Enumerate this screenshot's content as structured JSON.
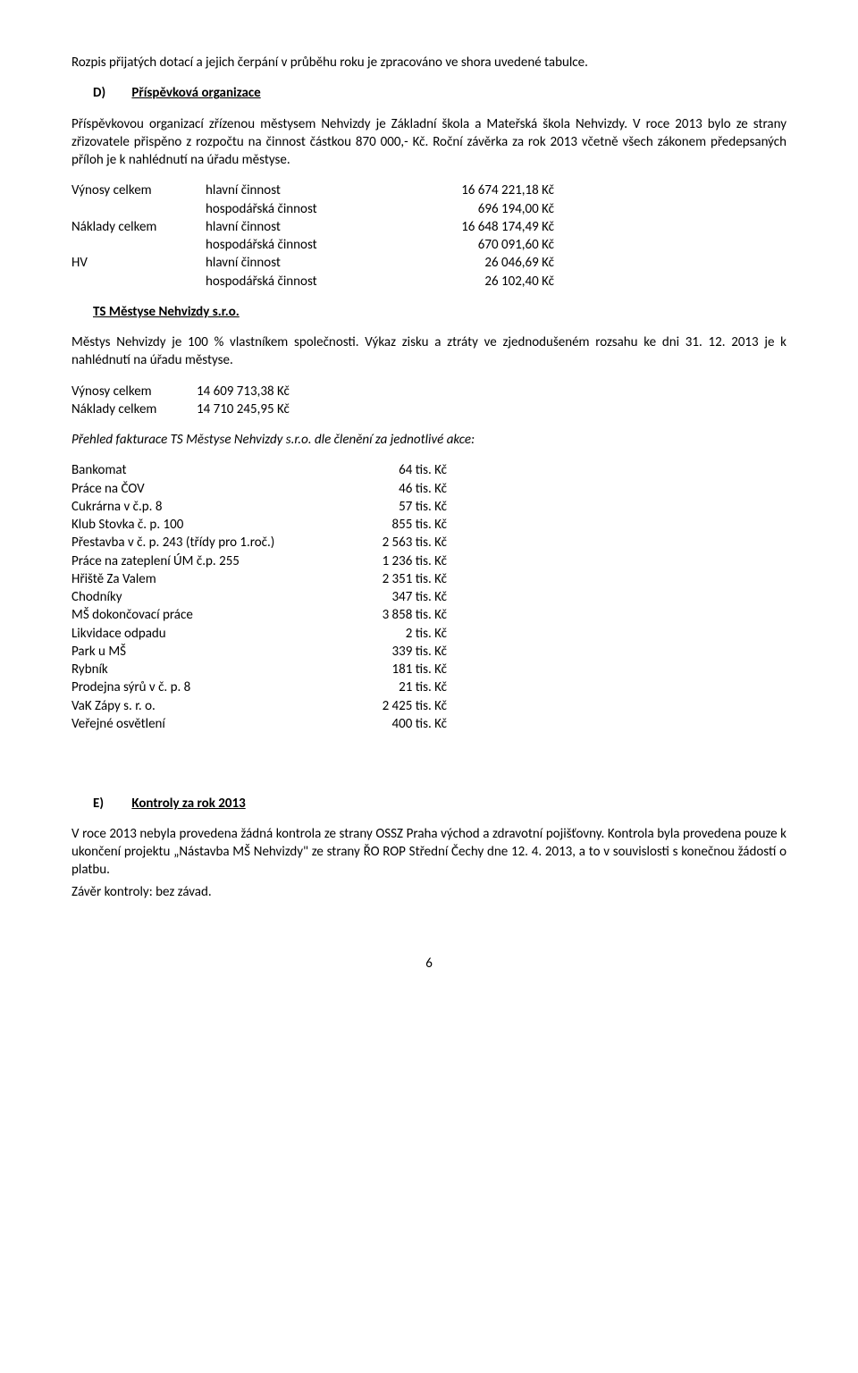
{
  "para_intro": "Rozpis přijatých dotací a jejich čerpání v  průběhu roku je zpracováno ve shora uvedené tabulce.",
  "section_d": {
    "letter": "D)",
    "title": "Příspěvková organizace",
    "para1": "Příspěvkovou organizací zřízenou městysem Nehvizdy je Základní škola a Mateřská škola Nehvizdy. V roce 2013 bylo ze strany zřizovatele přispěno z rozpočtu na činnost částkou 870 000,- Kč. Roční závěrka za rok 2013 včetně všech zákonem předepsaných příloh je k nahlédnutí na úřadu městyse.",
    "rows": [
      {
        "a": "Výnosy celkem",
        "b": "hlavní činnost",
        "c": "16 674 221,18 Kč"
      },
      {
        "a": "",
        "b": "hospodářská činnost",
        "c": "696 194,00 Kč"
      },
      {
        "a": "Náklady celkem",
        "b": "hlavní činnost",
        "c": "16 648 174,49 Kč"
      },
      {
        "a": "",
        "b": "hospodářská činnost",
        "c": "670 091,60 Kč"
      },
      {
        "a": "HV",
        "b": "hlavní činnost",
        "c": "26 046,69 Kč"
      },
      {
        "a": "",
        "b": "hospodářská činnost",
        "c": "26 102,40 Kč"
      }
    ]
  },
  "ts": {
    "heading": "TS Městyse Nehvizdy s.r.o.",
    "para": "Městys Nehvizdy je 100 % vlastníkem společnosti. Výkaz zisku a ztráty ve zjednodušeném rozsahu ke dni 31. 12. 2013 je k nahlédnutí na úřadu městyse.",
    "rows": [
      {
        "a": "Výnosy celkem",
        "c": "14 609 713,38 Kč"
      },
      {
        "a": "Náklady celkem",
        "c": "14 710 245,95 Kč"
      }
    ],
    "fakturace_heading": "Přehled fakturace TS Městyse Nehvizdy s.r.o. dle členění za jednotlivé akce:",
    "fakturace_rows": [
      {
        "a": "Bankomat",
        "c": "64 tis. Kč"
      },
      {
        "a": "Práce na ČOV",
        "c": "46 tis. Kč"
      },
      {
        "a": "Cukrárna v č.p. 8",
        "c": "57 tis. Kč"
      },
      {
        "a": "Klub Stovka č. p. 100",
        "c": "855 tis. Kč"
      },
      {
        "a": "Přestavba v č. p. 243 (třídy pro 1.roč.)",
        "c": "2 563 tis. Kč"
      },
      {
        "a": "Práce na zateplení ÚM č.p. 255",
        "c": "1 236 tis. Kč"
      },
      {
        "a": "Hřiště Za Valem",
        "c": "2 351 tis. Kč"
      },
      {
        "a": "Chodníky",
        "c": "347 tis. Kč"
      },
      {
        "a": "MŠ dokončovací práce",
        "c": "3 858 tis. Kč"
      },
      {
        "a": "Likvidace odpadu",
        "c": "2 tis. Kč"
      },
      {
        "a": "Park u MŠ",
        "c": "339 tis. Kč"
      },
      {
        "a": "Rybník",
        "c": "181 tis. Kč"
      },
      {
        "a": "Prodejna sýrů v č. p. 8",
        "c": "21 tis. Kč"
      },
      {
        "a": "VaK Zápy s. r. o.",
        "c": "2 425 tis. Kč"
      },
      {
        "a": "Veřejné osvětlení",
        "c": "400 tis. Kč"
      }
    ]
  },
  "section_e": {
    "letter": "E)",
    "title": "Kontroly za rok 2013",
    "para": "V roce 2013 nebyla provedena žádná kontrola ze strany OSSZ Praha východ a zdravotní pojišťovny. Kontrola byla provedena pouze k ukončení projektu „Nástavba MŠ Nehvizdy\" ze strany ŘO ROP Střední Čechy dne 12. 4. 2013, a to v souvislosti s konečnou žádostí o platbu.",
    "para2": "Závěr kontroly: bez závad."
  },
  "page_number": "6"
}
